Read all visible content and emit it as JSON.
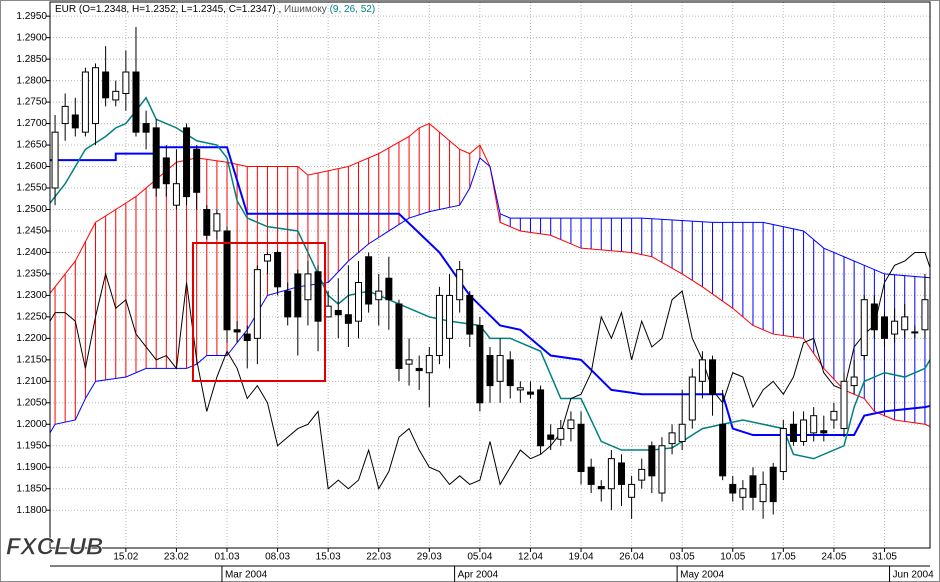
{
  "chart_data": {
    "type": "candlestick",
    "title": "EUR (O=1.2348, H=1.2352, L=1.2345, C=1.2347) ,",
    "indicator": "Ишимоку",
    "indicator_params": "(9, 26, 52)",
    "logo": "FXCLUB",
    "categories": [
      null,
      null,
      null,
      null,
      null,
      null,
      null,
      "15.02",
      null,
      null,
      null,
      null,
      "23.02",
      null,
      null,
      null,
      null,
      "01.03",
      null,
      null,
      null,
      null,
      "08.03",
      null,
      null,
      null,
      null,
      "15.03",
      null,
      null,
      null,
      null,
      "22.03",
      null,
      null,
      null,
      null,
      "29.03",
      null,
      null,
      null,
      null,
      "05.04",
      null,
      null,
      null,
      null,
      "12.04",
      null,
      null,
      null,
      null,
      "19.04",
      null,
      null,
      null,
      null,
      "26.04",
      null,
      null,
      null,
      null,
      "03.05",
      null,
      null,
      null,
      null,
      "10.05",
      null,
      null,
      null,
      null,
      "17.05",
      null,
      null,
      null,
      null,
      "24.05",
      null,
      null,
      null,
      null,
      "31.05",
      null,
      null,
      null,
      null
    ],
    "months": [
      null,
      null,
      null,
      null,
      null,
      null,
      null,
      null,
      null,
      null,
      null,
      null,
      null,
      null,
      null,
      null,
      null,
      "Mar 2004",
      null,
      null,
      null,
      null,
      null,
      null,
      null,
      null,
      null,
      null,
      null,
      null,
      null,
      null,
      null,
      null,
      null,
      null,
      null,
      null,
      null,
      null,
      "Apr 2004",
      null,
      null,
      null,
      null,
      null,
      null,
      null,
      null,
      null,
      null,
      null,
      null,
      null,
      null,
      null,
      null,
      null,
      null,
      null,
      null,
      null,
      "May 2004",
      null,
      null,
      null,
      null,
      null,
      null,
      null,
      null,
      null,
      null,
      null,
      null,
      null,
      null,
      null,
      null,
      null,
      null,
      null,
      null,
      "Jun 2004",
      null,
      null,
      null
    ],
    "open": [
      1.255,
      1.27,
      1.272,
      1.268,
      1.27,
      1.282,
      1.2755,
      1.277,
      1.282,
      1.27,
      1.269,
      1.262,
      1.251,
      1.269,
      1.264,
      1.25,
      1.245,
      1.245,
      1.222,
      1.221,
      1.22,
      1.238,
      1.24,
      1.231,
      1.235,
      1.229,
      1.2355,
      1.225,
      1.2265,
      1.2255,
      1.224,
      1.239,
      1.229,
      1.234,
      1.228,
      1.214,
      1.213,
      1.212,
      1.216,
      1.22,
      1.229,
      1.23,
      1.223,
      1.216,
      1.21,
      1.215,
      1.208,
      1.2075,
      1.208,
      1.1975,
      1.1965,
      1.199,
      1.2,
      1.19,
      1.1855,
      1.185,
      1.191,
      1.183,
      1.187,
      1.195,
      1.184,
      1.1955,
      1.196,
      1.201,
      1.21,
      1.215,
      1.2,
      1.186,
      1.183,
      1.188,
      1.182,
      1.19,
      1.189,
      1.2,
      1.196,
      1.198,
      1.1985,
      1.201,
      1.199,
      1.209,
      1.216,
      1.228,
      1.225,
      1.221,
      1.222,
      1.2215,
      1.222
    ],
    "high": [
      1.272,
      1.277,
      1.276,
      1.283,
      1.284,
      1.288,
      1.28,
      1.287,
      1.2925,
      1.273,
      1.271,
      1.265,
      1.264,
      1.27,
      1.265,
      1.251,
      1.25,
      1.246,
      1.224,
      1.223,
      1.237,
      1.24,
      1.2405,
      1.233,
      1.236,
      1.238,
      1.237,
      1.231,
      1.234,
      1.237,
      1.238,
      1.24,
      1.235,
      1.239,
      1.229,
      1.22,
      1.216,
      1.218,
      1.232,
      1.235,
      1.238,
      1.231,
      1.225,
      1.218,
      1.22,
      1.217,
      1.21,
      1.21,
      1.209,
      1.2,
      1.201,
      1.203,
      1.203,
      1.192,
      1.187,
      1.194,
      1.193,
      1.188,
      1.192,
      1.196,
      1.197,
      1.2,
      1.208,
      1.213,
      1.217,
      1.216,
      1.208,
      1.188,
      1.187,
      1.19,
      1.189,
      1.191,
      1.201,
      1.203,
      1.203,
      1.204,
      1.202,
      1.205,
      1.212,
      1.215,
      1.23,
      1.23,
      1.226,
      1.227,
      1.228,
      1.223,
      1.235
    ],
    "low": [
      1.251,
      1.266,
      1.267,
      1.267,
      1.265,
      1.274,
      1.274,
      1.273,
      1.267,
      1.264,
      1.253,
      1.253,
      1.25,
      1.251,
      1.25,
      1.243,
      1.243,
      1.219,
      1.219,
      1.213,
      1.214,
      1.235,
      1.23,
      1.223,
      1.216,
      1.223,
      1.217,
      1.225,
      1.22,
      1.218,
      1.22,
      1.226,
      1.223,
      1.222,
      1.21,
      1.209,
      1.208,
      1.204,
      1.214,
      1.213,
      1.226,
      1.218,
      1.203,
      1.205,
      1.205,
      1.206,
      1.205,
      1.206,
      1.193,
      1.194,
      1.195,
      1.196,
      1.186,
      1.184,
      1.182,
      1.18,
      1.181,
      1.178,
      1.185,
      1.184,
      1.182,
      1.193,
      1.194,
      1.199,
      1.206,
      1.202,
      1.187,
      1.182,
      1.18,
      1.18,
      1.178,
      1.179,
      1.187,
      1.195,
      1.195,
      1.196,
      1.196,
      1.199,
      1.197,
      1.207,
      1.215,
      1.22,
      1.218,
      1.219,
      1.22,
      1.22,
      1.22
    ],
    "close": [
      1.268,
      1.274,
      1.269,
      1.282,
      1.283,
      1.276,
      1.2775,
      1.282,
      1.268,
      1.268,
      1.255,
      1.256,
      1.256,
      1.253,
      1.254,
      1.244,
      1.249,
      1.222,
      1.2215,
      1.2195,
      1.236,
      1.2395,
      1.232,
      1.225,
      1.225,
      1.235,
      1.224,
      1.2275,
      1.2255,
      1.2235,
      1.233,
      1.228,
      1.231,
      1.229,
      1.213,
      1.215,
      1.2125,
      1.216,
      1.23,
      1.23,
      1.236,
      1.221,
      1.205,
      1.209,
      1.216,
      1.209,
      1.2085,
      1.207,
      1.195,
      1.1965,
      1.199,
      1.201,
      1.189,
      1.186,
      1.185,
      1.192,
      1.186,
      1.186,
      1.1895,
      1.188,
      1.195,
      1.198,
      1.2,
      1.211,
      1.215,
      1.207,
      1.188,
      1.184,
      1.185,
      1.183,
      1.186,
      1.182,
      1.199,
      1.196,
      1.201,
      1.202,
      1.198,
      1.203,
      1.21,
      1.211,
      1.229,
      1.222,
      1.22,
      1.224,
      1.225,
      1.2215,
      1.229
    ],
    "up_color": "#ffffff",
    "down_color": "#000000",
    "series": [
      {
        "color": "#008080",
        "x": [
          -1,
          1,
          3,
          5,
          6,
          7,
          9,
          10,
          12,
          14,
          16,
          17,
          18,
          19,
          21,
          24,
          27,
          28,
          29,
          31,
          33,
          35,
          37,
          39,
          42,
          43,
          45,
          48,
          50,
          52,
          54,
          56,
          59,
          61,
          62,
          64,
          66,
          68,
          72,
          73,
          75,
          78,
          79,
          80,
          82,
          84,
          86,
          87
        ],
        "values": [
          1.25,
          1.256,
          1.264,
          1.267,
          1.269,
          1.27,
          1.276,
          1.271,
          1.269,
          1.266,
          1.265,
          1.262,
          1.252,
          1.248,
          1.246,
          1.245,
          1.23,
          1.228,
          1.23,
          1.231,
          1.229,
          1.227,
          1.225,
          1.224,
          1.223,
          1.22,
          1.22,
          1.217,
          1.206,
          1.206,
          1.196,
          1.194,
          1.194,
          1.1945,
          1.196,
          1.199,
          1.2,
          1.201,
          1.199,
          1.193,
          1.192,
          1.195,
          1.204,
          1.21,
          1.212,
          1.211,
          1.213,
          1.217
        ]
      },
      {
        "color": "#0000ff",
        "x": [
          -1,
          6,
          6,
          10,
          10,
          17,
          19,
          34,
          38,
          41,
          44,
          46,
          49,
          52,
          55,
          58,
          66,
          67,
          69,
          79,
          80,
          82,
          86,
          87
        ],
        "values": [
          1.2615,
          1.2615,
          1.263,
          1.263,
          1.2645,
          1.2645,
          1.249,
          1.249,
          1.24,
          1.23,
          1.223,
          1.222,
          1.216,
          1.215,
          1.208,
          1.207,
          1.207,
          1.199,
          1.1975,
          1.1975,
          1.202,
          1.203,
          1.204,
          1.2045
        ]
      },
      {
        "color": "#000000",
        "x": [
          -1,
          0,
          1,
          2,
          3,
          4,
          5,
          6,
          7,
          8,
          9,
          10,
          11,
          12,
          13,
          14,
          15,
          16,
          17,
          18,
          19,
          20,
          21,
          22,
          23,
          24,
          25,
          26,
          27,
          28,
          29,
          30,
          31,
          32,
          33,
          34,
          35,
          36,
          37,
          38,
          39,
          40,
          41,
          42,
          43,
          44,
          45,
          46,
          47,
          48,
          49,
          50,
          51,
          52,
          53,
          54,
          55,
          56,
          57,
          58,
          59,
          60,
          61,
          62,
          63,
          64,
          65,
          66,
          67,
          68,
          69,
          70,
          71,
          72,
          73,
          74,
          75,
          76,
          77,
          78,
          79,
          80,
          81,
          82,
          83,
          84,
          85,
          86,
          87
        ],
        "values": [
          1.222,
          1.226,
          1.226,
          1.224,
          1.213,
          1.225,
          1.235,
          1.227,
          1.229,
          1.221,
          1.218,
          1.215,
          1.216,
          1.213,
          1.233,
          1.215,
          1.203,
          1.211,
          1.217,
          1.213,
          1.206,
          1.209,
          1.205,
          1.195,
          1.197,
          1.199,
          1.2,
          1.203,
          1.185,
          1.187,
          1.185,
          1.187,
          1.194,
          1.185,
          1.189,
          1.197,
          1.199,
          1.194,
          1.19,
          1.189,
          1.186,
          1.188,
          1.186,
          1.187,
          1.196,
          1.186,
          1.19,
          1.194,
          1.192,
          1.193,
          1.195,
          1.198,
          1.206,
          1.207,
          1.212,
          1.225,
          1.22,
          1.226,
          1.215,
          1.224,
          1.218,
          1.22,
          1.229,
          1.231,
          1.22,
          1.215,
          1.208,
          1.205,
          1.212,
          1.211,
          1.204,
          1.208,
          1.21,
          1.207,
          1.211,
          1.219,
          1.22,
          1.212,
          1.209,
          1.208,
          1.218,
          1.221,
          1.223,
          1.233,
          1.237,
          1.238,
          1.24,
          1.24,
          1.233
        ]
      },
      {
        "color": "#ff0000",
        "x": [
          -1,
          2,
          4,
          6,
          8,
          10,
          12,
          14,
          17,
          19,
          24,
          25,
          29,
          32,
          35,
          36,
          37,
          38,
          39,
          40,
          41,
          42,
          43,
          44,
          45,
          46,
          49,
          52,
          57,
          59,
          62,
          64,
          67,
          69,
          71,
          74,
          76,
          78,
          80,
          81,
          83,
          86,
          87
        ],
        "values": [
          1.229,
          1.238,
          1.247,
          1.25,
          1.253,
          1.257,
          1.261,
          1.262,
          1.261,
          1.26,
          1.26,
          1.258,
          1.26,
          1.263,
          1.267,
          1.269,
          1.27,
          1.268,
          1.266,
          1.264,
          1.263,
          1.265,
          1.26,
          1.247,
          1.246,
          1.245,
          1.244,
          1.241,
          1.24,
          1.239,
          1.235,
          1.232,
          1.227,
          1.223,
          1.221,
          1.22,
          1.213,
          1.208,
          1.206,
          1.203,
          1.201,
          1.2,
          1.199
        ]
      },
      {
        "color": "#0000ff",
        "x": [
          -1,
          0,
          2,
          3,
          4,
          7,
          9,
          13,
          14,
          15,
          17,
          19,
          21,
          24,
          27,
          29,
          31,
          33,
          35,
          37,
          40,
          41,
          42,
          43,
          44,
          45,
          49,
          58,
          65,
          70,
          74,
          76,
          78,
          80,
          82,
          87
        ],
        "values": [
          1.196,
          1.2,
          1.201,
          1.206,
          1.21,
          1.211,
          1.213,
          1.213,
          1.214,
          1.216,
          1.216,
          1.222,
          1.23,
          1.232,
          1.233,
          1.238,
          1.242,
          1.245,
          1.248,
          1.2495,
          1.251,
          1.255,
          1.262,
          1.26,
          1.249,
          1.248,
          1.248,
          1.248,
          1.247,
          1.247,
          1.245,
          1.241,
          1.239,
          1.237,
          1.235,
          1.234
        ]
      }
    ],
    "ylim": [
      1.1712,
      1.2983
    ],
    "yticks": [
      {
        "value": 1.18,
        "label": "1.1800"
      },
      {
        "value": 1.185,
        "label": "1.1850"
      },
      {
        "value": 1.19,
        "label": "1.1900"
      },
      {
        "value": 1.195,
        "label": "1.1950"
      },
      {
        "value": 1.2,
        "label": "1.2000"
      },
      {
        "value": 1.205,
        "label": "1.2050"
      },
      {
        "value": 1.21,
        "label": "1.2100"
      },
      {
        "value": 1.215,
        "label": "1.2150"
      },
      {
        "value": 1.22,
        "label": "1.2200"
      },
      {
        "value": 1.225,
        "label": "1.2250"
      },
      {
        "value": 1.23,
        "label": "1.2300"
      },
      {
        "value": 1.235,
        "label": "1.2350"
      },
      {
        "value": 1.24,
        "label": "1.2400"
      },
      {
        "value": 1.245,
        "label": "1.2450"
      },
      {
        "value": 1.25,
        "label": "1.2500"
      },
      {
        "value": 1.255,
        "label": "1.2550"
      },
      {
        "value": 1.26,
        "label": "1.2600"
      },
      {
        "value": 1.265,
        "label": "1.2650"
      },
      {
        "value": 1.27,
        "label": "1.2700"
      },
      {
        "value": 1.275,
        "label": "1.2750"
      },
      {
        "value": 1.28,
        "label": "1.2800"
      },
      {
        "value": 1.285,
        "label": "1.2850"
      },
      {
        "value": 1.29,
        "label": "1.2900"
      },
      {
        "value": 1.295,
        "label": "1.2950"
      }
    ],
    "grid": true
  }
}
